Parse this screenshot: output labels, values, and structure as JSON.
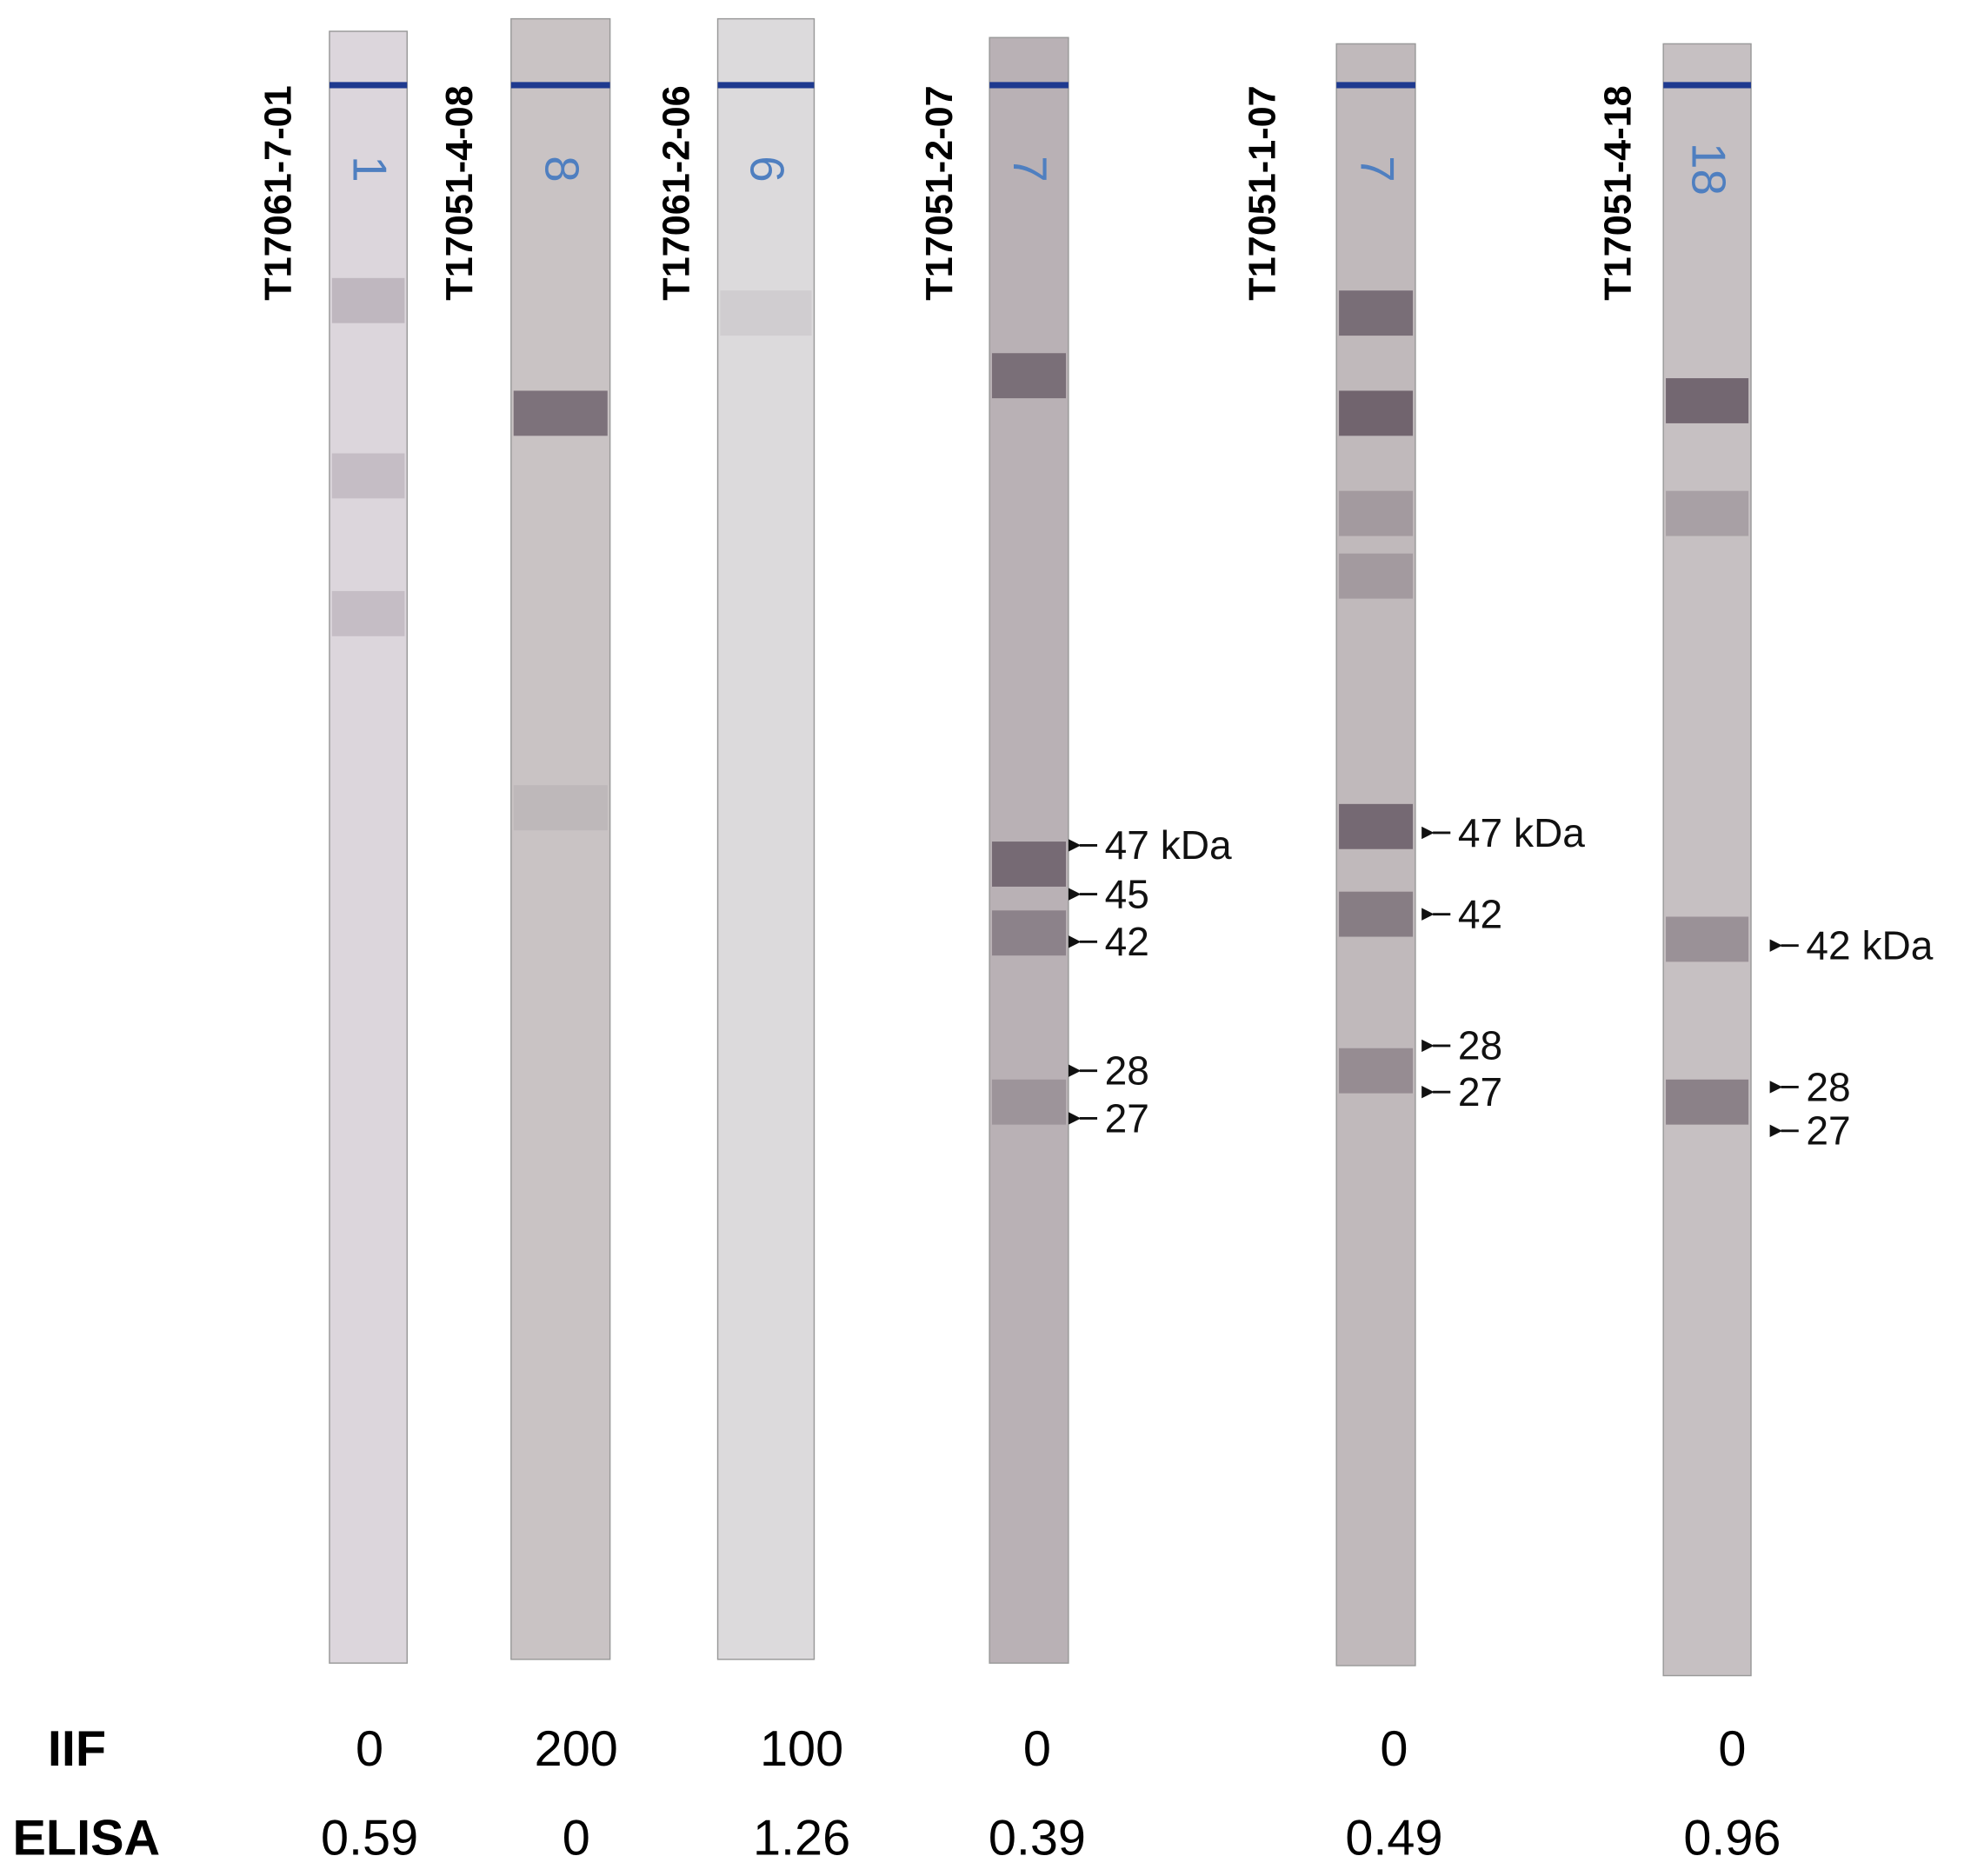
{
  "row_labels": {
    "iif": "IIF",
    "elisa": "ELISA"
  },
  "strips": [
    {
      "id": "T17061-7-01",
      "number": "1",
      "iif": 0,
      "elisa": 0.59,
      "bands": []
    },
    {
      "id": "T17051-4-08",
      "number": "8",
      "iif": 200,
      "elisa": 0,
      "bands": []
    },
    {
      "id": "T17061-2-06",
      "number": "6",
      "iif": 100,
      "elisa": 1.26,
      "bands": []
    },
    {
      "id": "T17051-2-07",
      "number": "7",
      "iif": 0,
      "elisa": 0.39,
      "bands": [
        "47 kDa",
        "45",
        "42",
        "28",
        "27"
      ]
    },
    {
      "id": "T17051-1-07",
      "number": "7",
      "iif": 0,
      "elisa": 0.49,
      "bands": [
        "47 kDa",
        "42",
        "28",
        "27"
      ]
    },
    {
      "id": "T17051-4-18",
      "number": "18",
      "iif": 0,
      "elisa": 0.96,
      "bands": [
        "42 kDa",
        "28",
        "27"
      ]
    }
  ]
}
